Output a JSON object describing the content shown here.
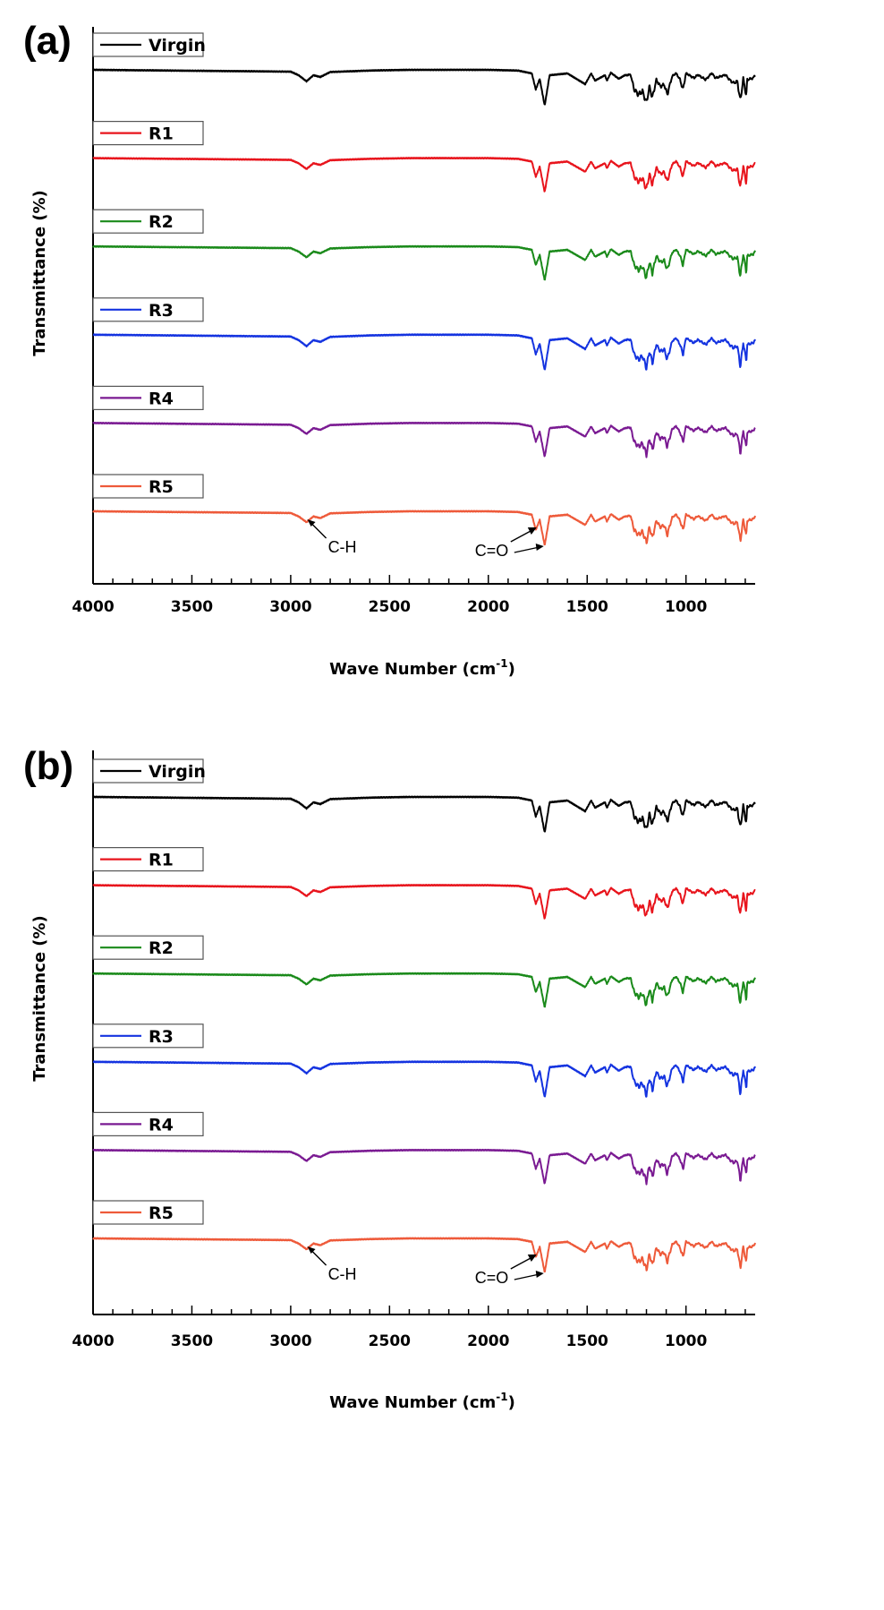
{
  "chart_data": [
    {
      "type": "line",
      "panel_label": "(a)",
      "xlabel": "Wave Number (cm",
      "xlabel_sup": "-1",
      "xlabel_end": ")",
      "ylabel": "Transmittance (%)",
      "xlim": [
        4000,
        650
      ],
      "x_reversed": true,
      "xticks": [
        "4000",
        "3500",
        "3000",
        "2500",
        "2000",
        "1500",
        "1000"
      ],
      "legend_placement": "top-left of each stacked trace",
      "annotations": [
        {
          "text": "C-H",
          "points_to_x": 2920
        },
        {
          "text": "C=O",
          "points_to_x": [
            1760,
            1715
          ]
        }
      ],
      "series": [
        {
          "name": "Virgin",
          "color": "#000000"
        },
        {
          "name": "R1",
          "color": "#e8141c"
        },
        {
          "name": "R2",
          "color": "#1a8a1a"
        },
        {
          "name": "R3",
          "color": "#1433e0"
        },
        {
          "name": "R4",
          "color": "#7a1a92"
        },
        {
          "name": "R5",
          "color": "#ee5a3a"
        }
      ],
      "band_x": [
        4000,
        3000,
        2960,
        2920,
        2885,
        2850,
        2800,
        2600,
        2400,
        2200,
        2000,
        1850,
        1780,
        1760,
        1740,
        1715,
        1690,
        1600,
        1510,
        1480,
        1460,
        1410,
        1400,
        1380,
        1340,
        1310,
        1280,
        1262,
        1240,
        1220,
        1200,
        1185,
        1170,
        1150,
        1130,
        1110,
        1095,
        1070,
        1050,
        1030,
        1015,
        1000,
        960,
        940,
        900,
        870,
        850,
        800,
        780,
        760,
        740,
        725,
        710,
        695,
        690,
        660,
        650
      ],
      "band_depth": [
        0,
        0.05,
        0.15,
        0.32,
        0.15,
        0.2,
        0.06,
        0.02,
        0,
        0,
        0,
        0.02,
        0.1,
        0.55,
        0.25,
        1,
        0.15,
        0.1,
        0.4,
        0.1,
        0.3,
        0.15,
        0.3,
        0.08,
        0.25,
        0.15,
        0.15,
        0.6,
        0.75,
        0.65,
        1,
        0.5,
        0.85,
        0.3,
        0.5,
        0.45,
        0.75,
        0.2,
        0.1,
        0.3,
        0.6,
        0.1,
        0.25,
        0.15,
        0.3,
        0.1,
        0.25,
        0.15,
        0.3,
        0.4,
        0.35,
        0.95,
        0.25,
        0.8,
        0.3,
        0.25,
        0.15
      ]
    },
    {
      "type": "line",
      "panel_label": "(b)",
      "xlabel": "Wave Number (cm",
      "xlabel_sup": "-1",
      "xlabel_end": ")",
      "ylabel": "Transmittance (%)",
      "xlim": [
        4000,
        650
      ],
      "x_reversed": true,
      "xticks": [
        "4000",
        "3500",
        "3000",
        "2500",
        "2000",
        "1500",
        "1000"
      ],
      "legend_placement": "top-left of each stacked trace",
      "annotations": [
        {
          "text": "C-H",
          "points_to_x": 2920
        },
        {
          "text": "C=O",
          "points_to_x": [
            1760,
            1715
          ]
        }
      ],
      "series": [
        {
          "name": "Virgin",
          "color": "#000000"
        },
        {
          "name": "R1",
          "color": "#e8141c"
        },
        {
          "name": "R2",
          "color": "#1a8a1a"
        },
        {
          "name": "R3",
          "color": "#1433e0"
        },
        {
          "name": "R4",
          "color": "#7a1a92"
        },
        {
          "name": "R5",
          "color": "#ee5a3a"
        }
      ],
      "band_x": [
        4000,
        3000,
        2960,
        2920,
        2885,
        2850,
        2800,
        2600,
        2400,
        2200,
        2000,
        1850,
        1780,
        1760,
        1740,
        1715,
        1690,
        1600,
        1510,
        1480,
        1460,
        1410,
        1400,
        1380,
        1340,
        1310,
        1280,
        1262,
        1240,
        1220,
        1200,
        1185,
        1170,
        1150,
        1130,
        1110,
        1095,
        1070,
        1050,
        1030,
        1015,
        1000,
        960,
        940,
        900,
        870,
        850,
        800,
        780,
        760,
        740,
        725,
        710,
        695,
        690,
        660,
        650
      ],
      "band_depth": [
        0,
        0.05,
        0.15,
        0.32,
        0.15,
        0.2,
        0.06,
        0.02,
        0,
        0,
        0,
        0.02,
        0.1,
        0.55,
        0.25,
        1,
        0.15,
        0.1,
        0.4,
        0.1,
        0.3,
        0.15,
        0.3,
        0.08,
        0.25,
        0.15,
        0.15,
        0.6,
        0.75,
        0.65,
        1,
        0.5,
        0.85,
        0.3,
        0.5,
        0.45,
        0.75,
        0.2,
        0.1,
        0.3,
        0.6,
        0.1,
        0.25,
        0.15,
        0.3,
        0.1,
        0.25,
        0.15,
        0.3,
        0.4,
        0.35,
        0.95,
        0.25,
        0.8,
        0.3,
        0.25,
        0.15
      ]
    }
  ]
}
